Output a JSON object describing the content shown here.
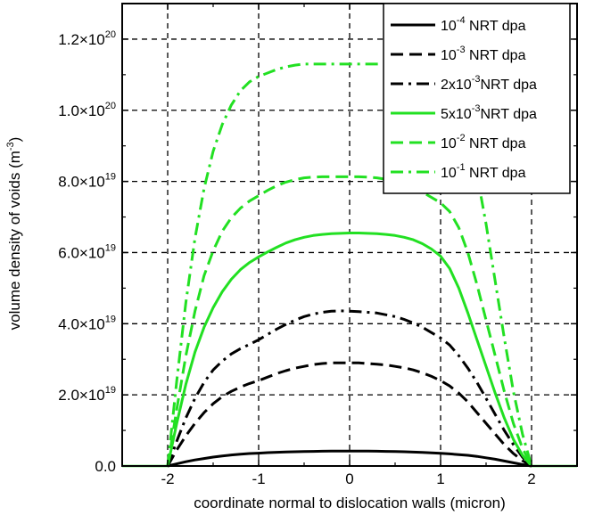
{
  "chart_data": {
    "type": "line",
    "xlabel": "coordinate normal to dislocation walls (micron)",
    "ylabel": "volume density of voids (m",
    "ylabel_sup": "-3",
    "ylabel_close": ")",
    "xlim": [
      -2.5,
      2.5
    ],
    "ylim": [
      0,
      1.3e+20
    ],
    "grid": true,
    "legend_position": "top-right",
    "x_ticks": [
      {
        "value": -2,
        "label": "-2"
      },
      {
        "value": -1,
        "label": "-1"
      },
      {
        "value": 0,
        "label": "0"
      },
      {
        "value": 1,
        "label": "1"
      },
      {
        "value": 2,
        "label": "2"
      }
    ],
    "y_ticks": [
      {
        "value": 0,
        "mantissa": "0.0",
        "exp": ""
      },
      {
        "value": 2e+19,
        "mantissa": "2.0×10",
        "exp": "19"
      },
      {
        "value": 4e+19,
        "mantissa": "4.0×10",
        "exp": "19"
      },
      {
        "value": 6e+19,
        "mantissa": "6.0×10",
        "exp": "19"
      },
      {
        "value": 8e+19,
        "mantissa": "8.0×10",
        "exp": "19"
      },
      {
        "value": 1e+20,
        "mantissa": "1.0×10",
        "exp": "20"
      },
      {
        "value": 1.2e+20,
        "mantissa": "1.2×10",
        "exp": "20"
      }
    ],
    "x": [
      -2.0,
      -1.9,
      -1.8,
      -1.7,
      -1.6,
      -1.5,
      -1.4,
      -1.3,
      -1.2,
      -1.1,
      -1.0,
      -0.9,
      -0.8,
      -0.7,
      -0.6,
      -0.5,
      -0.4,
      -0.3,
      -0.2,
      -0.1,
      0.0,
      0.1,
      0.2,
      0.3,
      0.4,
      0.5,
      0.6,
      0.7,
      0.8,
      0.9,
      1.0,
      1.1,
      1.2,
      1.3,
      1.4,
      1.5,
      1.6,
      1.7,
      1.8,
      1.9,
      2.0
    ],
    "series": [
      {
        "legend_pre": "10",
        "legend_exp": "-4",
        "legend_post": " NRT dpa",
        "color": "#000000",
        "dash": "solid",
        "values": [
          0,
          6e+17,
          1.2e+18,
          1.7e+18,
          2.1e+18,
          2.5e+18,
          2.8e+18,
          3.1e+18,
          3.3e+18,
          3.5e+18,
          3.6e+18,
          3.75e+18,
          3.85e+18,
          3.95e+18,
          4e+18,
          4.05e+18,
          4.1e+18,
          4.15e+18,
          4.18e+18,
          4.2e+18,
          4.2e+18,
          4.2e+18,
          4.18e+18,
          4.15e+18,
          4.1e+18,
          4.05e+18,
          4e+18,
          3.9e+18,
          3.8e+18,
          3.7e+18,
          3.55e+18,
          3.4e+18,
          3.2e+18,
          3e+18,
          2.7e+18,
          2.3e+18,
          1.9e+18,
          1.4e+18,
          9e+17,
          4e+17,
          0
        ]
      },
      {
        "legend_pre": "10",
        "legend_exp": "-3",
        "legend_post": " NRT dpa",
        "color": "#000000",
        "dash": "dash",
        "values": [
          0,
          4.5e+18,
          8.5e+18,
          1.2e+19,
          1.5e+19,
          1.75e+19,
          1.95e+19,
          2.1e+19,
          2.22e+19,
          2.32e+19,
          2.4e+19,
          2.5e+19,
          2.6e+19,
          2.68e+19,
          2.75e+19,
          2.8e+19,
          2.85e+19,
          2.88e+19,
          2.9e+19,
          2.9e+19,
          2.9e+19,
          2.9e+19,
          2.88e+19,
          2.86e+19,
          2.84e+19,
          2.8e+19,
          2.76e+19,
          2.7e+19,
          2.62e+19,
          2.52e+19,
          2.4e+19,
          2.25e+19,
          2.05e+19,
          1.8e+19,
          1.5e+19,
          1.2e+19,
          9e+18,
          6e+18,
          3.5e+18,
          1.5e+18,
          0
        ]
      },
      {
        "legend_pre": "2x10",
        "legend_exp": "-3",
        "legend_post": "NRT dpa",
        "color": "#000000",
        "dash": "dashdot",
        "values": [
          0,
          7e+18,
          1.35e+19,
          1.9e+19,
          2.35e+19,
          2.7e+19,
          2.95e+19,
          3.15e+19,
          3.3e+19,
          3.42e+19,
          3.55e+19,
          3.7e+19,
          3.85e+19,
          3.98e+19,
          4.1e+19,
          4.2e+19,
          4.27e+19,
          4.32e+19,
          4.35e+19,
          4.36e+19,
          4.35e+19,
          4.34e+19,
          4.32e+19,
          4.3e+19,
          4.25e+19,
          4.2e+19,
          4.12e+19,
          4.02e+19,
          3.9e+19,
          3.75e+19,
          3.6e+19,
          3.4e+19,
          3.1e+19,
          2.75e+19,
          2.35e+19,
          1.9e+19,
          1.45e+19,
          1e+19,
          6e+18,
          2.5e+18,
          0
        ]
      },
      {
        "legend_pre": "5x10",
        "legend_exp": "-3",
        "legend_post": "NRT dpa",
        "color": "#22e022",
        "dash": "solid",
        "values": [
          0,
          1.2e+19,
          2.3e+19,
          3.2e+19,
          3.9e+19,
          4.45e+19,
          4.9e+19,
          5.25e+19,
          5.52e+19,
          5.72e+19,
          5.88e+19,
          6.02e+19,
          6.15e+19,
          6.27e+19,
          6.36e+19,
          6.43e+19,
          6.48e+19,
          6.51e+19,
          6.53e+19,
          6.54e+19,
          6.55e+19,
          6.55e+19,
          6.54e+19,
          6.53e+19,
          6.51e+19,
          6.48e+19,
          6.43e+19,
          6.36e+19,
          6.25e+19,
          6.1e+19,
          5.9e+19,
          5.55e+19,
          5e+19,
          4.3e+19,
          3.55e+19,
          2.8e+19,
          2.05e+19,
          1.35e+19,
          7.5e+18,
          3e+18,
          0
        ]
      },
      {
        "legend_pre": "10",
        "legend_exp": "-2",
        "legend_post": " NRT dpa",
        "color": "#22e022",
        "dash": "dash",
        "values": [
          0,
          1.6e+19,
          3.1e+19,
          4.35e+19,
          5.35e+19,
          6.05e+19,
          6.6e+19,
          6.98e+19,
          7.25e+19,
          7.45e+19,
          7.6e+19,
          7.75e+19,
          7.88e+19,
          7.98e+19,
          8.05e+19,
          8.1e+19,
          8.12e+19,
          8.13e+19,
          8.13e+19,
          8.13e+19,
          8.13e+19,
          8.13e+19,
          8.12e+19,
          8.1e+19,
          8.06e+19,
          8e+19,
          7.92e+19,
          7.82e+19,
          7.7e+19,
          7.55e+19,
          7.4e+19,
          7.15e+19,
          6.7e+19,
          6e+19,
          5.1e+19,
          4.1e+19,
          3.1e+19,
          2.1e+19,
          1.2e+19,
          5e+18,
          0
        ]
      },
      {
        "legend_pre": "10",
        "legend_exp": "-1",
        "legend_post": " NRT dpa",
        "color": "#22e022",
        "dash": "dashdot",
        "values": [
          0,
          2.4e+19,
          4.6e+19,
          6.4e+19,
          7.8e+19,
          8.85e+19,
          9.6e+19,
          1.015e+20,
          1.055e+20,
          1.08e+20,
          1.095e+20,
          1.105e+20,
          1.115e+20,
          1.122e+20,
          1.127e+20,
          1.13e+20,
          1.13e+20,
          1.13e+20,
          1.13e+20,
          1.13e+20,
          1.13e+20,
          1.13e+20,
          1.13e+20,
          1.13e+20,
          1.13e+20,
          1.13e+20,
          1.128e+20,
          1.125e+20,
          1.12e+20,
          1.11e+20,
          1.1e+20,
          1.07e+20,
          1.02e+20,
          9.4e+19,
          8.2e+19,
          6.8e+19,
          5.2e+19,
          3.6e+19,
          2.1e+19,
          9e+18,
          0
        ]
      }
    ]
  }
}
